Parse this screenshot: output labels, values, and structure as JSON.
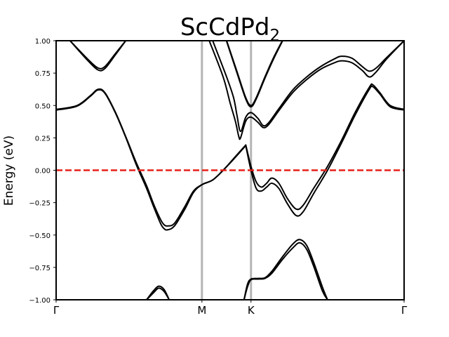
{
  "chart_data": {
    "type": "line",
    "title": "ScCdPd",
    "title_subscript": "2",
    "xlabel": "",
    "ylabel": "Energy (eV)",
    "ylim": [
      -1.0,
      1.0
    ],
    "xlim": [
      0,
      1
    ],
    "yticks": [
      -1.0,
      -0.75,
      -0.5,
      -0.25,
      0.0,
      0.25,
      0.5,
      0.75,
      1.0
    ],
    "ytick_labels": [
      "−1.00",
      "−0.75",
      "−0.50",
      "−0.25",
      "0.00",
      "0.25",
      "0.50",
      "0.75",
      "1.00"
    ],
    "kpoints": [
      {
        "label": "Γ",
        "x": 0.0
      },
      {
        "label": "M",
        "x": 0.419
      },
      {
        "label": "K",
        "x": 0.56
      },
      {
        "label": "Γ",
        "x": 1.0
      }
    ],
    "fermi_level": 0.0,
    "colors": {
      "bands": "#000000",
      "fermi": "#e8201a",
      "kline": "#b4b4b4"
    },
    "grid": false,
    "series": [
      {
        "values": [
          [
            0.04,
            1.0
          ],
          [
            0.09,
            0.86
          ],
          [
            0.12,
            0.79
          ],
          [
            0.14,
            0.8
          ],
          [
            0.17,
            0.9
          ],
          [
            0.2,
            1.0
          ]
        ]
      },
      {
        "values": [
          [
            0.04,
            1.0
          ],
          [
            0.09,
            0.85
          ],
          [
            0.12,
            0.775
          ],
          [
            0.14,
            0.785
          ],
          [
            0.17,
            0.89
          ],
          [
            0.2,
            1.0
          ]
        ]
      },
      {
        "values": [
          [
            0.0,
            0.47
          ],
          [
            0.06,
            0.5
          ],
          [
            0.1,
            0.58
          ],
          [
            0.12,
            0.625
          ],
          [
            0.14,
            0.6
          ],
          [
            0.17,
            0.45
          ],
          [
            0.2,
            0.26
          ],
          [
            0.23,
            0.06
          ],
          [
            0.26,
            -0.12
          ],
          [
            0.28,
            -0.26
          ],
          [
            0.3,
            -0.38
          ],
          [
            0.31,
            -0.42
          ],
          [
            0.32,
            -0.43
          ],
          [
            0.34,
            -0.41
          ],
          [
            0.37,
            -0.28
          ],
          [
            0.395,
            -0.16
          ],
          [
            0.42,
            -0.11
          ],
          [
            0.45,
            -0.075
          ],
          [
            0.48,
            0.0
          ],
          [
            0.51,
            0.09
          ],
          [
            0.535,
            0.165
          ],
          [
            0.545,
            0.195
          ]
        ]
      },
      {
        "values": [
          [
            0.0,
            0.465
          ],
          [
            0.06,
            0.495
          ],
          [
            0.1,
            0.575
          ],
          [
            0.12,
            0.62
          ],
          [
            0.14,
            0.595
          ],
          [
            0.17,
            0.445
          ],
          [
            0.2,
            0.255
          ],
          [
            0.23,
            0.045
          ],
          [
            0.26,
            -0.14
          ],
          [
            0.28,
            -0.28
          ],
          [
            0.3,
            -0.41
          ],
          [
            0.31,
            -0.45
          ],
          [
            0.32,
            -0.46
          ],
          [
            0.34,
            -0.43
          ],
          [
            0.37,
            -0.3
          ],
          [
            0.395,
            -0.17
          ],
          [
            0.42,
            -0.11
          ],
          [
            0.45,
            -0.075
          ],
          [
            0.48,
            0.0
          ],
          [
            0.51,
            0.085
          ],
          [
            0.535,
            0.16
          ],
          [
            0.545,
            0.19
          ]
        ]
      },
      {
        "values": [
          [
            0.545,
            0.195
          ],
          [
            0.56,
            0.03
          ],
          [
            0.575,
            -0.09
          ],
          [
            0.59,
            -0.13
          ],
          [
            0.605,
            -0.1
          ],
          [
            0.62,
            -0.06
          ],
          [
            0.64,
            -0.1
          ],
          [
            0.665,
            -0.22
          ],
          [
            0.69,
            -0.3
          ],
          [
            0.71,
            -0.27
          ],
          [
            0.74,
            -0.14
          ],
          [
            0.78,
            0.03
          ],
          [
            0.82,
            0.23
          ],
          [
            0.86,
            0.45
          ],
          [
            0.9,
            0.64
          ],
          [
            0.91,
            0.66
          ],
          [
            0.93,
            0.6
          ],
          [
            0.96,
            0.5
          ],
          [
            1.0,
            0.47
          ]
        ]
      },
      {
        "values": [
          [
            0.545,
            0.19
          ],
          [
            0.56,
            0.0
          ],
          [
            0.575,
            -0.14
          ],
          [
            0.59,
            -0.16
          ],
          [
            0.605,
            -0.13
          ],
          [
            0.62,
            -0.1
          ],
          [
            0.64,
            -0.14
          ],
          [
            0.665,
            -0.26
          ],
          [
            0.69,
            -0.35
          ],
          [
            0.71,
            -0.32
          ],
          [
            0.74,
            -0.18
          ],
          [
            0.78,
            0.0
          ],
          [
            0.82,
            0.21
          ],
          [
            0.86,
            0.43
          ],
          [
            0.9,
            0.625
          ],
          [
            0.91,
            0.645
          ],
          [
            0.93,
            0.59
          ],
          [
            0.96,
            0.49
          ],
          [
            1.0,
            0.465
          ]
        ]
      },
      {
        "values": [
          [
            0.44,
            1.0
          ],
          [
            0.48,
            0.72
          ],
          [
            0.5,
            0.52
          ],
          [
            0.515,
            0.38
          ],
          [
            0.525,
            0.26
          ],
          [
            0.53,
            0.25
          ],
          [
            0.545,
            0.38
          ],
          [
            0.56,
            0.41
          ],
          [
            0.58,
            0.37
          ],
          [
            0.595,
            0.33
          ],
          [
            0.61,
            0.35
          ],
          [
            0.64,
            0.46
          ],
          [
            0.68,
            0.6
          ],
          [
            0.72,
            0.7
          ],
          [
            0.76,
            0.78
          ],
          [
            0.8,
            0.83
          ],
          [
            0.82,
            0.845
          ],
          [
            0.85,
            0.83
          ],
          [
            0.88,
            0.77
          ],
          [
            0.9,
            0.72
          ],
          [
            0.92,
            0.76
          ],
          [
            0.95,
            0.86
          ],
          [
            1.0,
            1.0
          ]
        ]
      },
      {
        "values": [
          [
            0.45,
            1.0
          ],
          [
            0.49,
            0.72
          ],
          [
            0.51,
            0.56
          ],
          [
            0.52,
            0.42
          ],
          [
            0.53,
            0.3
          ],
          [
            0.545,
            0.41
          ],
          [
            0.56,
            0.445
          ],
          [
            0.58,
            0.4
          ],
          [
            0.595,
            0.345
          ],
          [
            0.61,
            0.365
          ],
          [
            0.64,
            0.475
          ],
          [
            0.68,
            0.62
          ],
          [
            0.72,
            0.72
          ],
          [
            0.76,
            0.8
          ],
          [
            0.8,
            0.86
          ],
          [
            0.82,
            0.88
          ],
          [
            0.85,
            0.865
          ],
          [
            0.88,
            0.8
          ],
          [
            0.9,
            0.765
          ],
          [
            0.92,
            0.79
          ],
          [
            0.95,
            0.87
          ],
          [
            1.0,
            1.0
          ]
        ]
      },
      {
        "values": [
          [
            0.49,
            1.0
          ],
          [
            0.52,
            0.76
          ],
          [
            0.545,
            0.56
          ],
          [
            0.56,
            0.5
          ],
          [
            0.575,
            0.56
          ],
          [
            0.6,
            0.72
          ],
          [
            0.625,
            0.87
          ],
          [
            0.65,
            1.0
          ]
        ]
      },
      {
        "values": [
          [
            0.49,
            0.995
          ],
          [
            0.52,
            0.75
          ],
          [
            0.545,
            0.55
          ],
          [
            0.56,
            0.49
          ],
          [
            0.575,
            0.55
          ],
          [
            0.6,
            0.71
          ],
          [
            0.625,
            0.86
          ],
          [
            0.65,
            0.995
          ]
        ]
      },
      {
        "values": [
          [
            0.26,
            -1.0
          ],
          [
            0.28,
            -0.93
          ],
          [
            0.295,
            -0.895
          ],
          [
            0.31,
            -0.92
          ],
          [
            0.325,
            -1.0
          ]
        ]
      },
      {
        "values": [
          [
            0.26,
            -1.0
          ],
          [
            0.28,
            -0.945
          ],
          [
            0.295,
            -0.91
          ],
          [
            0.31,
            -0.935
          ],
          [
            0.325,
            -1.0
          ]
        ]
      },
      {
        "values": [
          [
            0.54,
            -1.0
          ],
          [
            0.55,
            -0.88
          ],
          [
            0.56,
            -0.84
          ],
          [
            0.58,
            -0.835
          ],
          [
            0.6,
            -0.83
          ],
          [
            0.62,
            -0.78
          ],
          [
            0.65,
            -0.67
          ],
          [
            0.68,
            -0.57
          ],
          [
            0.7,
            -0.535
          ],
          [
            0.72,
            -0.58
          ],
          [
            0.74,
            -0.71
          ],
          [
            0.765,
            -0.9
          ],
          [
            0.78,
            -1.0
          ]
        ]
      },
      {
        "values": [
          [
            0.54,
            -1.0
          ],
          [
            0.55,
            -0.9
          ],
          [
            0.56,
            -0.845
          ],
          [
            0.58,
            -0.84
          ],
          [
            0.6,
            -0.835
          ],
          [
            0.62,
            -0.795
          ],
          [
            0.65,
            -0.69
          ],
          [
            0.68,
            -0.6
          ],
          [
            0.7,
            -0.56
          ],
          [
            0.72,
            -0.61
          ],
          [
            0.74,
            -0.74
          ],
          [
            0.765,
            -0.93
          ],
          [
            0.78,
            -1.0
          ]
        ]
      }
    ]
  }
}
